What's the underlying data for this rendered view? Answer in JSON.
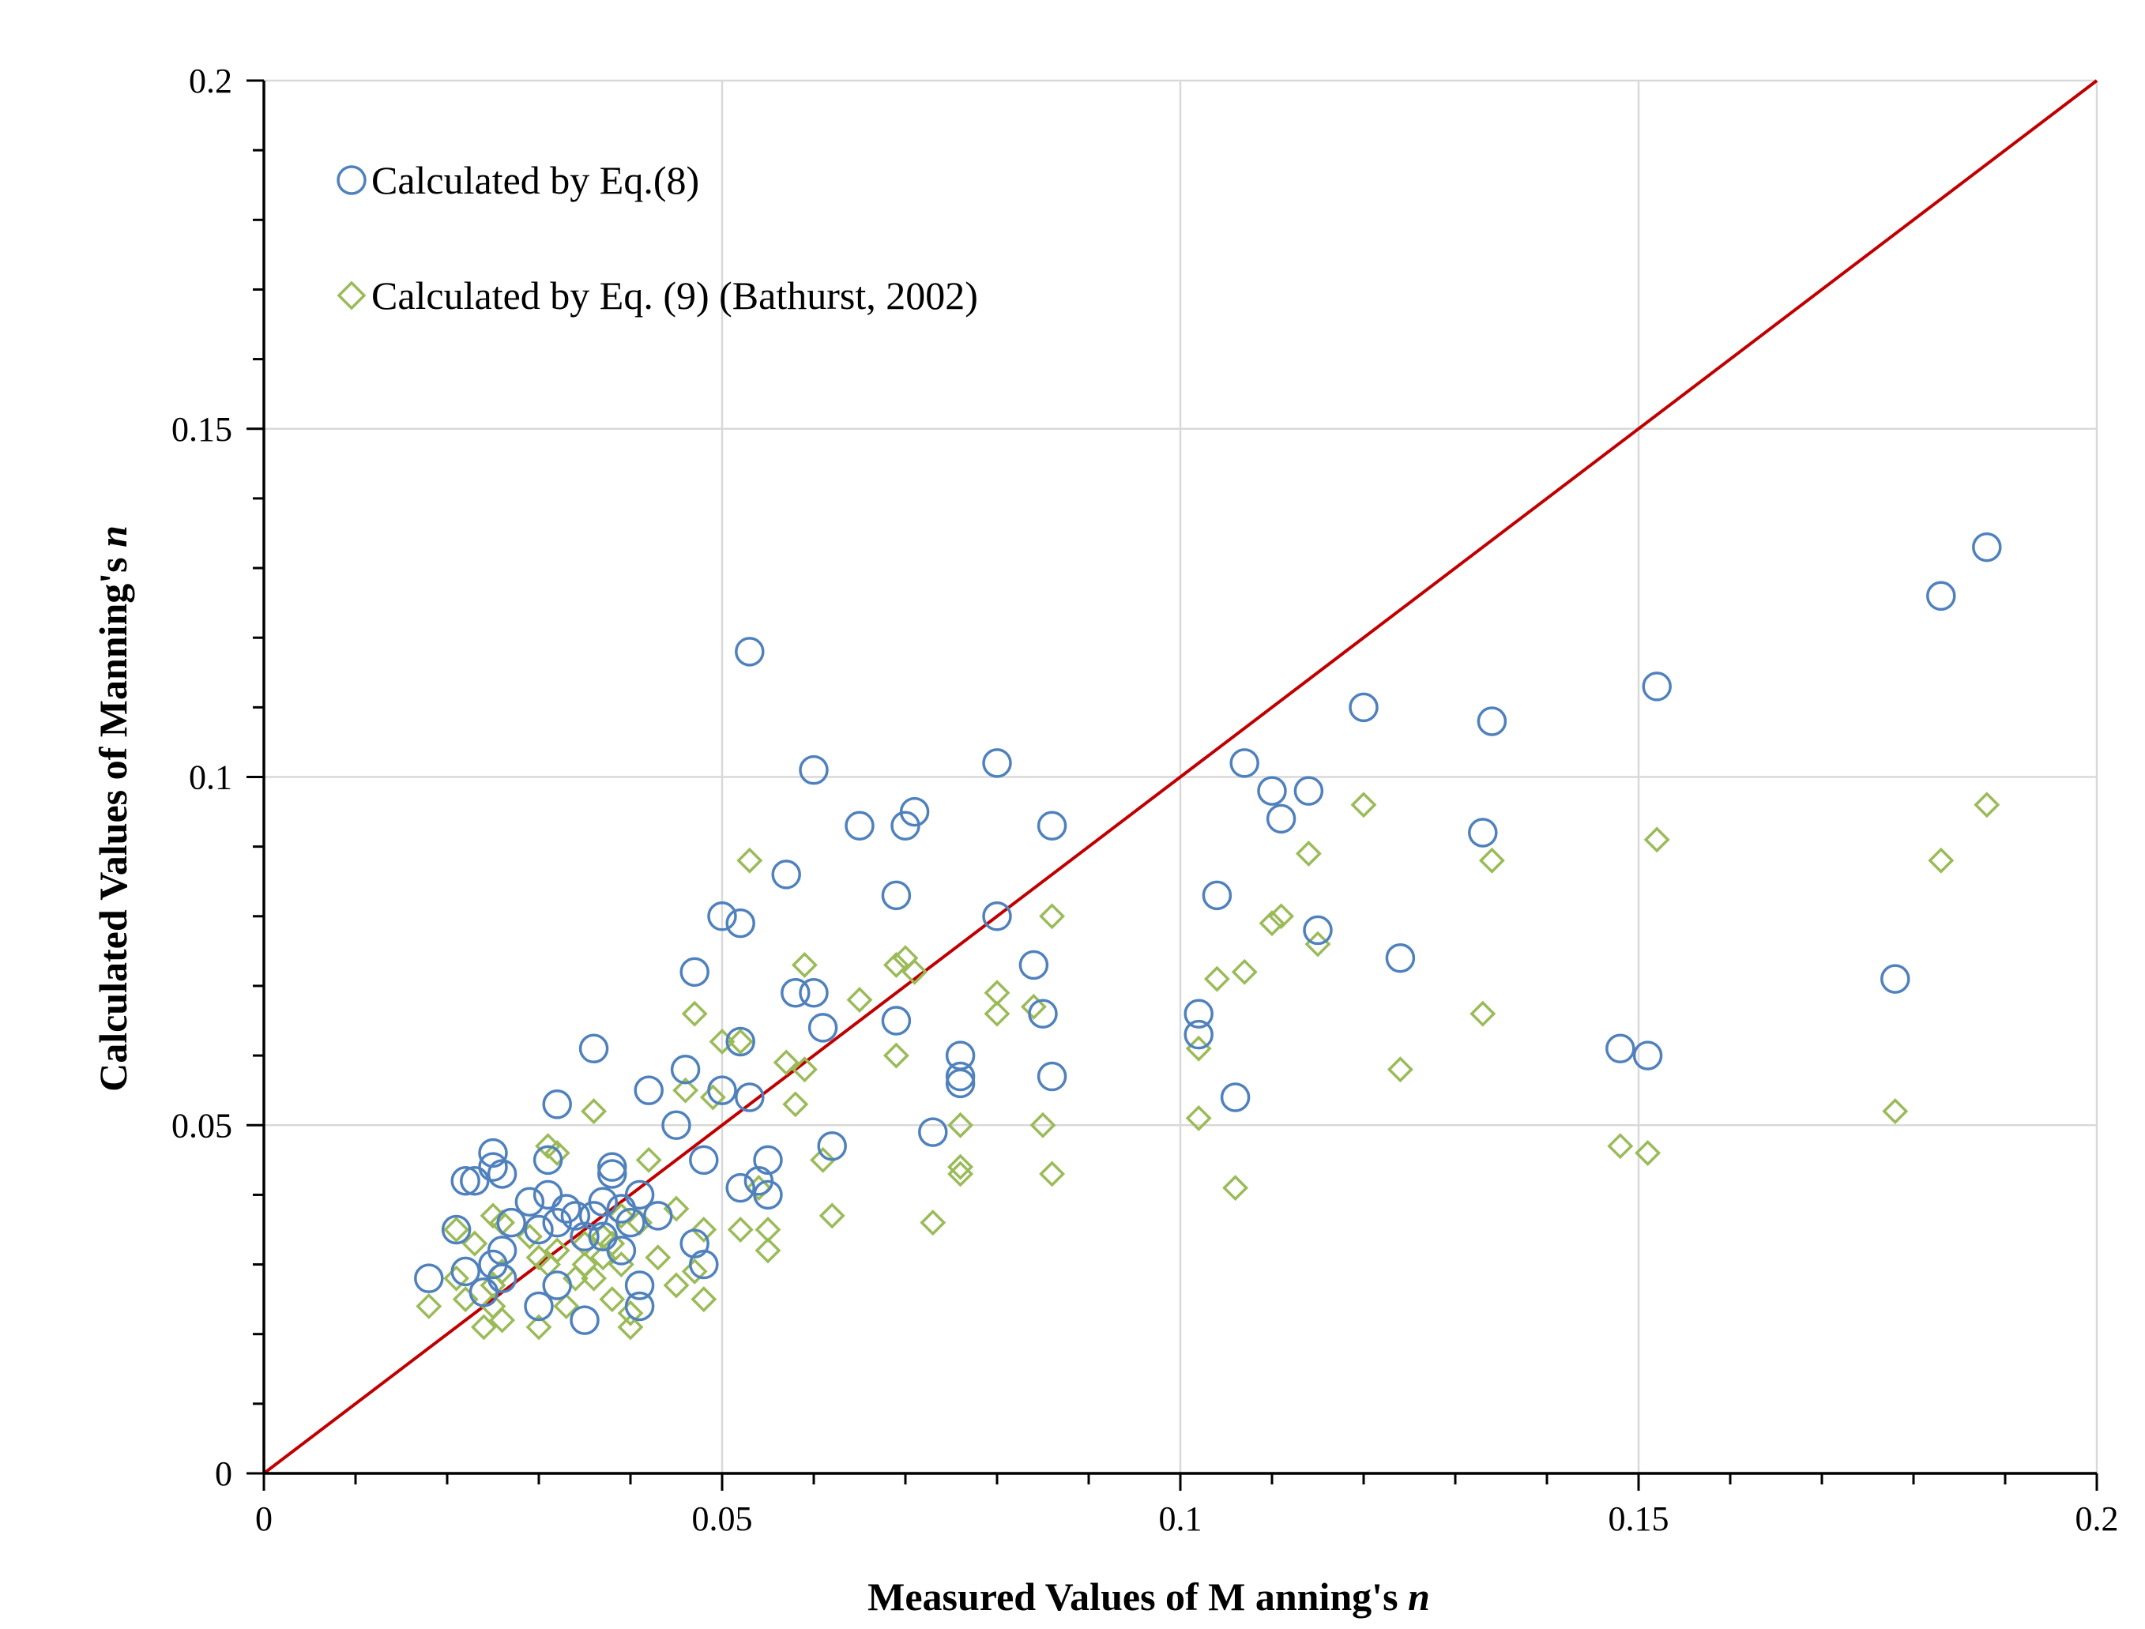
{
  "chart_data": {
    "type": "scatter",
    "title": "",
    "xlabel": "Measured Values of M anning's",
    "xlabel_italic": "n",
    "ylabel": "Calculated Values of Manning's",
    "ylabel_italic": "n",
    "xlim": [
      0,
      0.2
    ],
    "ylim": [
      0,
      0.2
    ],
    "xticks": [
      "0",
      "0.05",
      "0.1",
      "0.15",
      "0.2"
    ],
    "yticks": [
      "0",
      "0.05",
      "0.1",
      "0.15",
      "0.2"
    ],
    "xtick_values": [
      0,
      0.05,
      0.1,
      0.15,
      0.2
    ],
    "ytick_values": [
      0,
      0.05,
      0.1,
      0.15,
      0.2
    ],
    "grid": true,
    "legend_position": "top-left",
    "reference_line": {
      "name": "1:1 line",
      "from": [
        0,
        0
      ],
      "to": [
        0.2,
        0.2
      ],
      "color": "#C00000"
    },
    "series": [
      {
        "name": "Calculated by Eq.(8)",
        "marker": "circle",
        "color": "#4F81BD",
        "points": [
          [
            0.018,
            0.028
          ],
          [
            0.021,
            0.035
          ],
          [
            0.022,
            0.042
          ],
          [
            0.023,
            0.042
          ],
          [
            0.022,
            0.029
          ],
          [
            0.024,
            0.026
          ],
          [
            0.025,
            0.03
          ],
          [
            0.025,
            0.046
          ],
          [
            0.025,
            0.044
          ],
          [
            0.026,
            0.043
          ],
          [
            0.026,
            0.032
          ],
          [
            0.027,
            0.036
          ],
          [
            0.026,
            0.028
          ],
          [
            0.029,
            0.039
          ],
          [
            0.03,
            0.024
          ],
          [
            0.03,
            0.035
          ],
          [
            0.031,
            0.04
          ],
          [
            0.031,
            0.045
          ],
          [
            0.032,
            0.036
          ],
          [
            0.032,
            0.053
          ],
          [
            0.033,
            0.038
          ],
          [
            0.034,
            0.037
          ],
          [
            0.032,
            0.027
          ],
          [
            0.035,
            0.034
          ],
          [
            0.035,
            0.022
          ],
          [
            0.036,
            0.061
          ],
          [
            0.036,
            0.037
          ],
          [
            0.037,
            0.034
          ],
          [
            0.037,
            0.039
          ],
          [
            0.038,
            0.044
          ],
          [
            0.038,
            0.043
          ],
          [
            0.039,
            0.038
          ],
          [
            0.039,
            0.032
          ],
          [
            0.04,
            0.036
          ],
          [
            0.041,
            0.024
          ],
          [
            0.041,
            0.027
          ],
          [
            0.041,
            0.04
          ],
          [
            0.042,
            0.055
          ],
          [
            0.043,
            0.037
          ],
          [
            0.045,
            0.05
          ],
          [
            0.046,
            0.058
          ],
          [
            0.047,
            0.072
          ],
          [
            0.047,
            0.033
          ],
          [
            0.048,
            0.045
          ],
          [
            0.048,
            0.03
          ],
          [
            0.05,
            0.08
          ],
          [
            0.05,
            0.055
          ],
          [
            0.052,
            0.079
          ],
          [
            0.052,
            0.041
          ],
          [
            0.052,
            0.062
          ],
          [
            0.053,
            0.118
          ],
          [
            0.053,
            0.054
          ],
          [
            0.054,
            0.042
          ],
          [
            0.055,
            0.045
          ],
          [
            0.055,
            0.04
          ],
          [
            0.057,
            0.086
          ],
          [
            0.058,
            0.069
          ],
          [
            0.06,
            0.101
          ],
          [
            0.06,
            0.069
          ],
          [
            0.061,
            0.064
          ],
          [
            0.062,
            0.047
          ],
          [
            0.065,
            0.093
          ],
          [
            0.069,
            0.083
          ],
          [
            0.069,
            0.065
          ],
          [
            0.07,
            0.093
          ],
          [
            0.071,
            0.095
          ],
          [
            0.073,
            0.049
          ],
          [
            0.076,
            0.06
          ],
          [
            0.076,
            0.057
          ],
          [
            0.076,
            0.056
          ],
          [
            0.08,
            0.102
          ],
          [
            0.08,
            0.08
          ],
          [
            0.084,
            0.073
          ],
          [
            0.085,
            0.066
          ],
          [
            0.086,
            0.057
          ],
          [
            0.086,
            0.093
          ],
          [
            0.102,
            0.066
          ],
          [
            0.102,
            0.063
          ],
          [
            0.104,
            0.083
          ],
          [
            0.106,
            0.054
          ],
          [
            0.107,
            0.102
          ],
          [
            0.11,
            0.098
          ],
          [
            0.111,
            0.094
          ],
          [
            0.114,
            0.098
          ],
          [
            0.115,
            0.078
          ],
          [
            0.12,
            0.11
          ],
          [
            0.124,
            0.074
          ],
          [
            0.133,
            0.092
          ],
          [
            0.134,
            0.108
          ],
          [
            0.148,
            0.061
          ],
          [
            0.151,
            0.06
          ],
          [
            0.152,
            0.113
          ],
          [
            0.178,
            0.071
          ],
          [
            0.183,
            0.126
          ],
          [
            0.188,
            0.133
          ]
        ]
      },
      {
        "name": "Calculated by Eq. (9) (Bathurst, 2002)",
        "marker": "diamond",
        "color": "#9BBB59",
        "points": [
          [
            0.018,
            0.024
          ],
          [
            0.021,
            0.035
          ],
          [
            0.021,
            0.028
          ],
          [
            0.022,
            0.025
          ],
          [
            0.023,
            0.033
          ],
          [
            0.024,
            0.021
          ],
          [
            0.025,
            0.024
          ],
          [
            0.025,
            0.037
          ],
          [
            0.025,
            0.027
          ],
          [
            0.026,
            0.029
          ],
          [
            0.026,
            0.036
          ],
          [
            0.026,
            0.022
          ],
          [
            0.029,
            0.034
          ],
          [
            0.03,
            0.021
          ],
          [
            0.03,
            0.031
          ],
          [
            0.031,
            0.03
          ],
          [
            0.031,
            0.047
          ],
          [
            0.032,
            0.032
          ],
          [
            0.032,
            0.046
          ],
          [
            0.033,
            0.024
          ],
          [
            0.034,
            0.028
          ],
          [
            0.035,
            0.033
          ],
          [
            0.035,
            0.03
          ],
          [
            0.036,
            0.052
          ],
          [
            0.036,
            0.028
          ],
          [
            0.037,
            0.031
          ],
          [
            0.037,
            0.034
          ],
          [
            0.038,
            0.025
          ],
          [
            0.038,
            0.033
          ],
          [
            0.039,
            0.037
          ],
          [
            0.039,
            0.03
          ],
          [
            0.04,
            0.021
          ],
          [
            0.04,
            0.023
          ],
          [
            0.041,
            0.036
          ],
          [
            0.042,
            0.045
          ],
          [
            0.043,
            0.031
          ],
          [
            0.045,
            0.027
          ],
          [
            0.045,
            0.038
          ],
          [
            0.046,
            0.055
          ],
          [
            0.047,
            0.066
          ],
          [
            0.047,
            0.029
          ],
          [
            0.048,
            0.035
          ],
          [
            0.048,
            0.025
          ],
          [
            0.049,
            0.054
          ],
          [
            0.05,
            0.062
          ],
          [
            0.052,
            0.062
          ],
          [
            0.052,
            0.035
          ],
          [
            0.053,
            0.088
          ],
          [
            0.054,
            0.041
          ],
          [
            0.055,
            0.035
          ],
          [
            0.055,
            0.032
          ],
          [
            0.057,
            0.059
          ],
          [
            0.058,
            0.053
          ],
          [
            0.059,
            0.058
          ],
          [
            0.059,
            0.073
          ],
          [
            0.061,
            0.045
          ],
          [
            0.062,
            0.037
          ],
          [
            0.065,
            0.068
          ],
          [
            0.069,
            0.073
          ],
          [
            0.069,
            0.06
          ],
          [
            0.07,
            0.074
          ],
          [
            0.071,
            0.072
          ],
          [
            0.073,
            0.036
          ],
          [
            0.076,
            0.05
          ],
          [
            0.076,
            0.044
          ],
          [
            0.076,
            0.043
          ],
          [
            0.08,
            0.069
          ],
          [
            0.08,
            0.066
          ],
          [
            0.084,
            0.067
          ],
          [
            0.085,
            0.05
          ],
          [
            0.086,
            0.043
          ],
          [
            0.086,
            0.08
          ],
          [
            0.102,
            0.061
          ],
          [
            0.102,
            0.051
          ],
          [
            0.104,
            0.071
          ],
          [
            0.106,
            0.041
          ],
          [
            0.107,
            0.072
          ],
          [
            0.11,
            0.079
          ],
          [
            0.111,
            0.08
          ],
          [
            0.114,
            0.089
          ],
          [
            0.115,
            0.076
          ],
          [
            0.12,
            0.096
          ],
          [
            0.124,
            0.058
          ],
          [
            0.133,
            0.066
          ],
          [
            0.134,
            0.088
          ],
          [
            0.148,
            0.047
          ],
          [
            0.151,
            0.046
          ],
          [
            0.152,
            0.091
          ],
          [
            0.178,
            0.052
          ],
          [
            0.183,
            0.088
          ],
          [
            0.188,
            0.096
          ]
        ]
      }
    ]
  }
}
